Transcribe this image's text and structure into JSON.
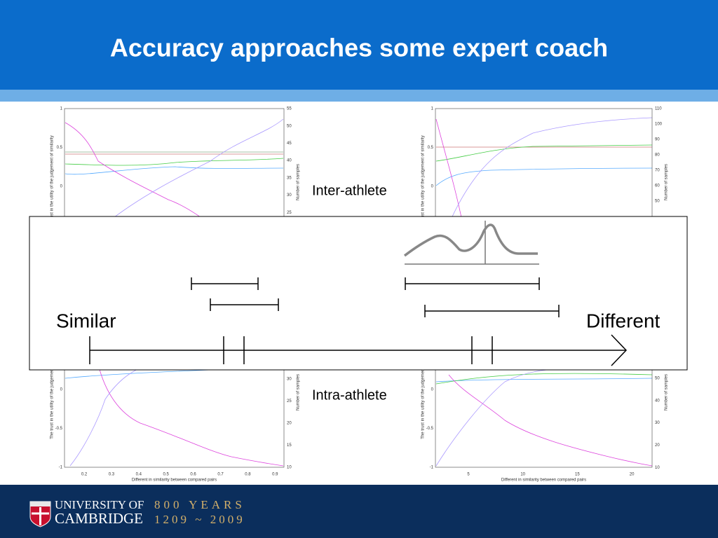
{
  "header": {
    "title": "Accuracy approaches some expert coach"
  },
  "plots": [
    {
      "y_ticks": [
        "1",
        "0.5",
        "0"
      ],
      "y2_ticks": [
        "55",
        "50",
        "45",
        "40",
        "35",
        "30",
        "25"
      ],
      "x_ticks": [],
      "y_label": "The trust in the utility of the judgement of similarity",
      "y2_label": "Number of samples",
      "x_label": ""
    },
    {
      "y_ticks": [
        "1",
        "0.5",
        "0"
      ],
      "y2_ticks": [
        "110",
        "100",
        "90",
        "80",
        "70",
        "60",
        "50"
      ],
      "x_ticks": [],
      "y_label": "The trust in the utility of the judgement of similarity",
      "y2_label": "Number of samples",
      "x_label": ""
    },
    {
      "y_ticks": [
        "0",
        "-0.5",
        "-1"
      ],
      "y2_ticks": [
        "30",
        "25",
        "20",
        "15",
        "10"
      ],
      "x_ticks": [
        "0.2",
        "0.3",
        "0.4",
        "0.5",
        "0.6",
        "0.7",
        "0.8",
        "0.9"
      ],
      "y_label": "The trust in the utility of the judgement of similarity",
      "y2_label": "Number of samples",
      "x_label": "Different in similarity between compared pairs"
    },
    {
      "y_ticks": [
        "0",
        "-0.5",
        "-1"
      ],
      "y2_ticks": [
        "50",
        "40",
        "30",
        "20",
        "10"
      ],
      "x_ticks": [
        "5",
        "10",
        "15",
        "20"
      ],
      "y_label": "The trust in the utility of the judgement of similarity",
      "y2_label": "Number of samples",
      "x_label": "Different in similarity between compared pairs"
    }
  ],
  "labels": {
    "inter": "Inter-athlete",
    "intra": "Intra-athlete"
  },
  "scale": {
    "left": "Similar",
    "right": "Different"
  },
  "footer": {
    "university": [
      "UNIVERSITY OF",
      "CAMBRIDGE"
    ],
    "anniversary": [
      "800 YEARS",
      "1209 ~ 2009"
    ]
  }
}
